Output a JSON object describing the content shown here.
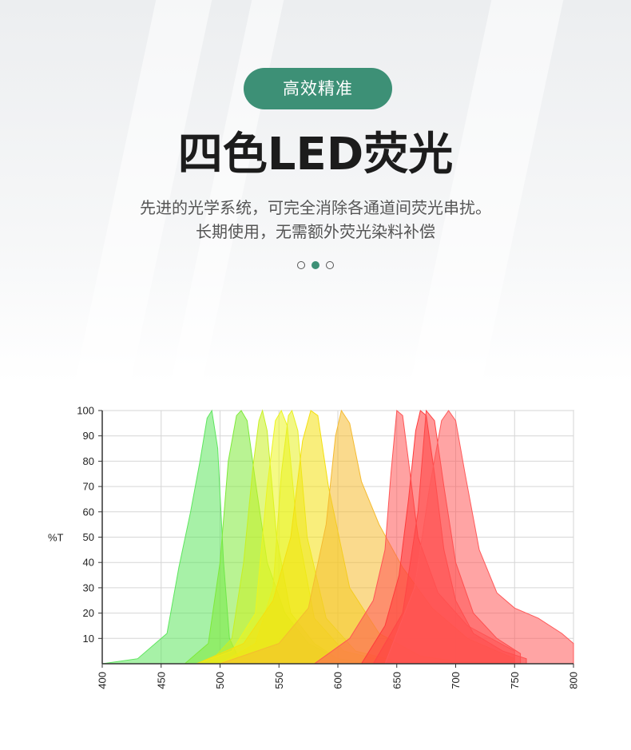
{
  "header": {
    "badge_label": "高效精准",
    "title": "四色LED荧光",
    "desc_line1": "先进的光学系统，可完全消除各通道间荧光串扰。",
    "desc_line2": "长期使用，无需额外荧光染料补偿",
    "accent_color": "#3d9076"
  },
  "pager": {
    "count": 3,
    "active": 2
  },
  "chart_data": {
    "type": "area",
    "ylabel": "%T",
    "xlim": [
      400,
      800
    ],
    "ylim": [
      0,
      100
    ],
    "x_ticks": [
      400,
      450,
      500,
      550,
      600,
      650,
      700,
      750,
      800
    ],
    "y_ticks": [
      10,
      20,
      30,
      40,
      50,
      60,
      70,
      80,
      90,
      100
    ],
    "grid": true,
    "series": [
      {
        "color": "#5ee65e",
        "points": [
          [
            400,
            0
          ],
          [
            430,
            2
          ],
          [
            455,
            12
          ],
          [
            465,
            38
          ],
          [
            475,
            60
          ],
          [
            483,
            80
          ],
          [
            489,
            97
          ],
          [
            493,
            100
          ],
          [
            498,
            85
          ],
          [
            503,
            40
          ],
          [
            508,
            10
          ],
          [
            515,
            3
          ],
          [
            530,
            1
          ]
        ]
      },
      {
        "color": "#7fea3a",
        "points": [
          [
            470,
            0
          ],
          [
            490,
            8
          ],
          [
            500,
            40
          ],
          [
            507,
            80
          ],
          [
            514,
            98
          ],
          [
            518,
            100
          ],
          [
            523,
            96
          ],
          [
            530,
            72
          ],
          [
            540,
            40
          ],
          [
            555,
            20
          ],
          [
            575,
            8
          ],
          [
            600,
            2
          ],
          [
            630,
            0
          ]
        ]
      },
      {
        "color": "#c8f020",
        "points": [
          [
            490,
            0
          ],
          [
            510,
            10
          ],
          [
            520,
            40
          ],
          [
            528,
            78
          ],
          [
            533,
            96
          ],
          [
            536,
            100
          ],
          [
            540,
            92
          ],
          [
            548,
            50
          ],
          [
            560,
            20
          ],
          [
            580,
            8
          ],
          [
            600,
            2
          ]
        ]
      },
      {
        "color": "#ecf520",
        "points": [
          [
            480,
            0
          ],
          [
            510,
            5
          ],
          [
            530,
            20
          ],
          [
            540,
            70
          ],
          [
            547,
            96
          ],
          [
            552,
            100
          ],
          [
            557,
            94
          ],
          [
            565,
            55
          ],
          [
            580,
            18
          ],
          [
            605,
            5
          ],
          [
            640,
            1
          ]
        ]
      },
      {
        "color": "#e8f020",
        "points": [
          [
            500,
            0
          ],
          [
            530,
            8
          ],
          [
            545,
            30
          ],
          [
            552,
            75
          ],
          [
            558,
            98
          ],
          [
            561,
            100
          ],
          [
            566,
            92
          ],
          [
            574,
            50
          ],
          [
            590,
            18
          ],
          [
            615,
            5
          ],
          [
            650,
            1
          ]
        ]
      },
      {
        "color": "#f4e010",
        "points": [
          [
            480,
            0
          ],
          [
            520,
            8
          ],
          [
            545,
            25
          ],
          [
            560,
            50
          ],
          [
            570,
            88
          ],
          [
            577,
            100
          ],
          [
            583,
            98
          ],
          [
            592,
            70
          ],
          [
            610,
            30
          ],
          [
            635,
            12
          ],
          [
            670,
            3
          ],
          [
            700,
            1
          ],
          [
            750,
            0
          ]
        ]
      },
      {
        "color": "#f5bb30",
        "points": [
          [
            500,
            0
          ],
          [
            550,
            8
          ],
          [
            575,
            22
          ],
          [
            590,
            55
          ],
          [
            598,
            90
          ],
          [
            603,
            100
          ],
          [
            610,
            95
          ],
          [
            620,
            72
          ],
          [
            635,
            55
          ],
          [
            655,
            38
          ],
          [
            680,
            22
          ],
          [
            710,
            10
          ],
          [
            750,
            2
          ]
        ]
      },
      {
        "color": "#ff5555",
        "points": [
          [
            580,
            0
          ],
          [
            610,
            10
          ],
          [
            630,
            25
          ],
          [
            640,
            45
          ],
          [
            645,
            75
          ],
          [
            650,
            100
          ],
          [
            655,
            98
          ],
          [
            660,
            80
          ],
          [
            668,
            50
          ],
          [
            685,
            28
          ],
          [
            710,
            15
          ],
          [
            750,
            5
          ]
        ]
      },
      {
        "color": "#ff3b3b",
        "points": [
          [
            620,
            0
          ],
          [
            640,
            15
          ],
          [
            652,
            35
          ],
          [
            660,
            65
          ],
          [
            666,
            92
          ],
          [
            670,
            100
          ],
          [
            675,
            98
          ],
          [
            682,
            75
          ],
          [
            690,
            45
          ],
          [
            700,
            25
          ],
          [
            715,
            12
          ],
          [
            740,
            5
          ],
          [
            760,
            2
          ]
        ]
      },
      {
        "color": "#ff4545",
        "points": [
          [
            630,
            0
          ],
          [
            655,
            20
          ],
          [
            668,
            60
          ],
          [
            675,
            100
          ],
          [
            682,
            96
          ],
          [
            690,
            70
          ],
          [
            700,
            40
          ],
          [
            715,
            20
          ],
          [
            735,
            10
          ],
          [
            755,
            4
          ]
        ]
      },
      {
        "color": "#ff5a5a",
        "points": [
          [
            640,
            0
          ],
          [
            665,
            30
          ],
          [
            678,
            70
          ],
          [
            688,
            96
          ],
          [
            694,
            100
          ],
          [
            700,
            96
          ],
          [
            708,
            75
          ],
          [
            720,
            45
          ],
          [
            735,
            28
          ],
          [
            750,
            22
          ],
          [
            770,
            18
          ],
          [
            790,
            12
          ],
          [
            800,
            8
          ]
        ]
      }
    ]
  }
}
